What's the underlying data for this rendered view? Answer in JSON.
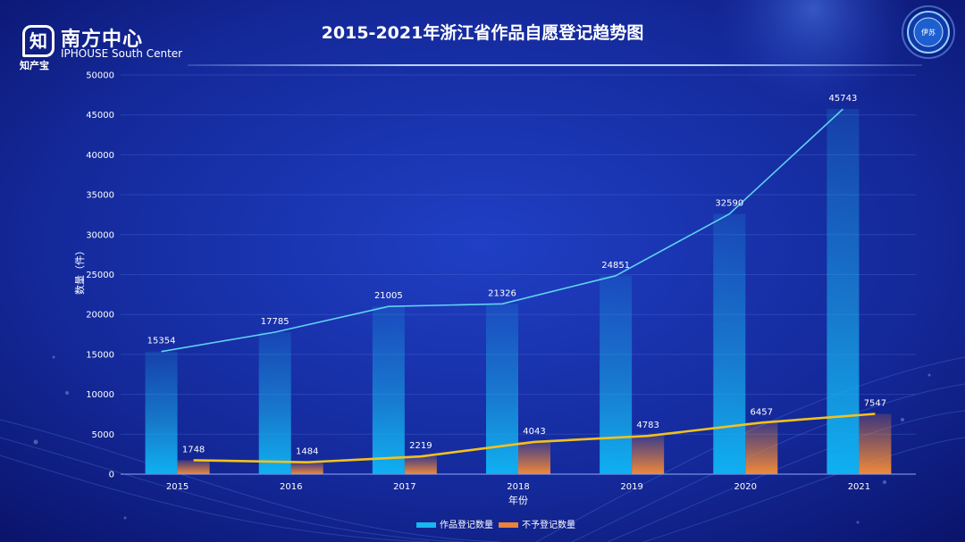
{
  "header": {
    "logo_cn": "南方中心",
    "logo_en": "IPHOUSE South Center",
    "logo_char": "知",
    "logo_sub": "知产宝",
    "title": "2015-2021年浙江省作品自愿登记趋势图",
    "badge_text": "伊苏"
  },
  "chart_data": {
    "type": "bar",
    "title": "2015-2021年浙江省作品自愿登记趋势图",
    "xlabel": "年份",
    "ylabel": "数量（件）",
    "ylim": [
      0,
      50000
    ],
    "yticks": [
      0,
      5000,
      10000,
      15000,
      20000,
      25000,
      30000,
      35000,
      40000,
      45000,
      50000
    ],
    "categories": [
      "2015",
      "2016",
      "2017",
      "2018",
      "2019",
      "2020",
      "2021"
    ],
    "series": [
      {
        "name": "作品登记数量",
        "values": [
          15354,
          17785,
          21005,
          21326,
          24851,
          32590,
          45743
        ],
        "color": "#19b6f0",
        "line_color": "#5fd2f2"
      },
      {
        "name": "不予登记数量",
        "values": [
          1748,
          1484,
          2219,
          4043,
          4783,
          6457,
          7547
        ],
        "color": "#e8823c",
        "line_color": "#f2c21c"
      }
    ],
    "legend": "bottom",
    "grid": true
  }
}
